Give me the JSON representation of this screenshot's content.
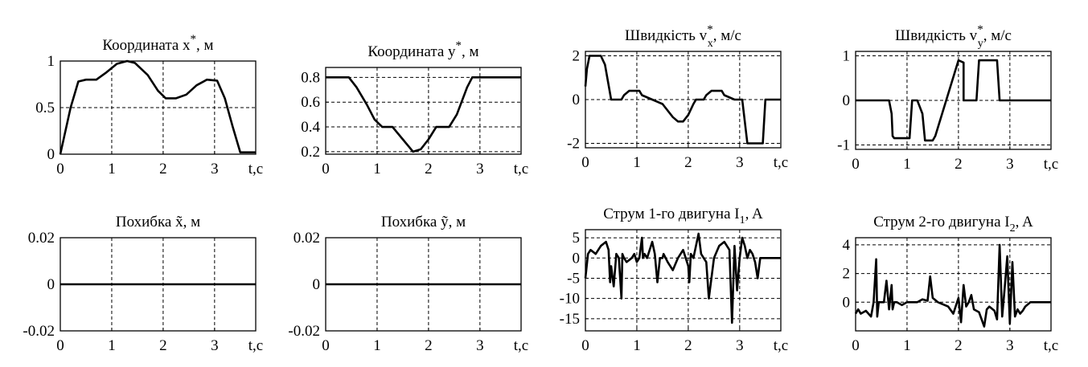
{
  "colors": {
    "line": "#000000",
    "grid": "#000000",
    "background": "#ffffff"
  },
  "chart_data": [
    {
      "type": "line",
      "title": {
        "main": "Координата x",
        "sup": "*",
        "tail": ", м"
      },
      "xlim": [
        0,
        3.8
      ],
      "ylim": [
        0,
        1.0
      ],
      "xticks": [
        0,
        1,
        2,
        3
      ],
      "xtick_labels": [
        "0",
        "1",
        "2",
        "3"
      ],
      "xunit": "t,c",
      "yticks": [
        0,
        0.5,
        1
      ],
      "ytick_labels": [
        "0",
        "0.5",
        "1"
      ],
      "grid": true,
      "series": [
        {
          "x": [
            0,
            0.2,
            0.35,
            0.5,
            0.7,
            0.9,
            1.1,
            1.3,
            1.45,
            1.7,
            1.9,
            2.05,
            2.25,
            2.45,
            2.65,
            2.85,
            3.05,
            3.2,
            3.35,
            3.5,
            3.8
          ],
          "y": [
            0,
            0.5,
            0.78,
            0.8,
            0.8,
            0.88,
            0.97,
            1.0,
            0.98,
            0.85,
            0.68,
            0.6,
            0.6,
            0.64,
            0.74,
            0.8,
            0.79,
            0.6,
            0.3,
            0.02,
            0.02
          ]
        }
      ]
    },
    {
      "type": "line",
      "title": {
        "main": "Координата y",
        "sup": "*",
        "tail": ", м"
      },
      "xlim": [
        0,
        3.8
      ],
      "ylim": [
        0.18,
        0.88
      ],
      "xticks": [
        0,
        1,
        2,
        3
      ],
      "xtick_labels": [
        "0",
        "1",
        "2",
        "3"
      ],
      "xunit": "t,c",
      "yticks": [
        0.2,
        0.4,
        0.6,
        0.8
      ],
      "ytick_labels": [
        "0.2",
        "0.4",
        "0.6",
        "0.8"
      ],
      "grid": true,
      "series": [
        {
          "x": [
            0,
            0.45,
            0.6,
            0.8,
            0.95,
            1.1,
            1.3,
            1.5,
            1.7,
            1.85,
            2.0,
            2.15,
            2.4,
            2.55,
            2.75,
            2.85,
            3.8
          ],
          "y": [
            0.8,
            0.8,
            0.72,
            0.58,
            0.46,
            0.4,
            0.4,
            0.3,
            0.2,
            0.22,
            0.3,
            0.4,
            0.4,
            0.5,
            0.72,
            0.8,
            0.8
          ]
        }
      ]
    },
    {
      "type": "line",
      "title": {
        "main": "Швидкість v",
        "sup": "*",
        "sub": "x",
        "tail": ", м/с"
      },
      "xlim": [
        0,
        3.8
      ],
      "ylim": [
        -2.2,
        2.2
      ],
      "xticks": [
        0,
        1,
        2,
        3
      ],
      "xtick_labels": [
        "0",
        "1",
        "2",
        "3"
      ],
      "xunit": "t,c",
      "yticks": [
        -2,
        0,
        2
      ],
      "ytick_labels": [
        "-2",
        "0",
        "2"
      ],
      "grid": true,
      "series": [
        {
          "x": [
            0,
            0.03,
            0.08,
            0.3,
            0.38,
            0.47,
            0.5,
            0.7,
            0.75,
            0.85,
            1.05,
            1.1,
            1.3,
            1.5,
            1.7,
            1.8,
            1.9,
            2.0,
            2.1,
            2.15,
            2.3,
            2.35,
            2.45,
            2.65,
            2.7,
            2.9,
            3.05,
            3.15,
            3.45,
            3.5,
            3.8
          ],
          "y": [
            0.6,
            1.4,
            2.0,
            2.0,
            1.6,
            0.4,
            0,
            0,
            0.2,
            0.4,
            0.4,
            0.2,
            0,
            -0.2,
            -0.8,
            -1.0,
            -1.0,
            -0.7,
            -0.2,
            0,
            0,
            0.2,
            0.4,
            0.4,
            0.2,
            0,
            0,
            -2.0,
            -2.0,
            0,
            0
          ]
        }
      ]
    },
    {
      "type": "line",
      "title": {
        "main": "Швидкість v",
        "sup": "*",
        "sub": "y",
        "tail": ", м/с"
      },
      "xlim": [
        0,
        3.8
      ],
      "ylim": [
        -1.1,
        1.1
      ],
      "xticks": [
        0,
        1,
        2,
        3
      ],
      "xtick_labels": [
        "0",
        "1",
        "2",
        "3"
      ],
      "xunit": "t,c",
      "yticks": [
        -1,
        0,
        1
      ],
      "ytick_labels": [
        "-1",
        "0",
        "1"
      ],
      "grid": true,
      "series": [
        {
          "x": [
            0,
            0.65,
            0.7,
            0.72,
            0.75,
            1.05,
            1.1,
            1.2,
            1.3,
            1.35,
            1.5,
            1.55,
            2.0,
            2.1,
            2.1,
            2.35,
            2.4,
            2.75,
            2.8,
            3.8
          ],
          "y": [
            0,
            0,
            -0.3,
            -0.8,
            -0.85,
            -0.85,
            0,
            0,
            -0.3,
            -0.9,
            -0.9,
            -0.8,
            0.9,
            0.85,
            0,
            0,
            0.9,
            0.9,
            0,
            0
          ]
        }
      ]
    },
    {
      "type": "line",
      "title": {
        "main": "Похибка x̃, м"
      },
      "xlim": [
        0,
        3.8
      ],
      "ylim": [
        -0.02,
        0.02
      ],
      "xticks": [
        0,
        1,
        2,
        3
      ],
      "xtick_labels": [
        "0",
        "1",
        "2",
        "3"
      ],
      "xunit": "t,c",
      "yticks": [
        -0.02,
        0,
        0.02
      ],
      "ytick_labels": [
        "-0.02",
        "0",
        "0.02"
      ],
      "grid": true,
      "series": [
        {
          "x": [
            0,
            3.8
          ],
          "y": [
            0,
            0
          ]
        }
      ]
    },
    {
      "type": "line",
      "title": {
        "main": "Похибка ỹ, м"
      },
      "xlim": [
        0,
        3.8
      ],
      "ylim": [
        -0.02,
        0.02
      ],
      "xticks": [
        0,
        1,
        2,
        3
      ],
      "xtick_labels": [
        "0",
        "1",
        "2",
        "3"
      ],
      "xunit": "t,c",
      "yticks": [
        -0.02,
        0,
        0.02
      ],
      "ytick_labels": [
        "-0.02",
        "0",
        "0.02"
      ],
      "grid": true,
      "series": [
        {
          "x": [
            0,
            3.8
          ],
          "y": [
            0,
            0
          ]
        }
      ]
    },
    {
      "type": "line",
      "title": {
        "main": "Струм 1-го двигуна I",
        "sub": "1",
        "tail": ", A"
      },
      "xlim": [
        0,
        3.8
      ],
      "ylim": [
        -18,
        7
      ],
      "xticks": [
        0,
        1,
        2,
        3
      ],
      "xtick_labels": [
        "0",
        "1",
        "2",
        "3"
      ],
      "xunit": "t,c",
      "yticks": [
        -15,
        -10,
        -5,
        0,
        5
      ],
      "ytick_labels": [
        "-15",
        "-10",
        "-5",
        "0",
        "5"
      ],
      "grid": true,
      "series": [
        {
          "x": [
            0,
            0.05,
            0.1,
            0.2,
            0.3,
            0.4,
            0.45,
            0.48,
            0.5,
            0.55,
            0.6,
            0.65,
            0.7,
            0.72,
            0.75,
            0.8,
            0.9,
            0.95,
            1.0,
            1.05,
            1.1,
            1.12,
            1.15,
            1.2,
            1.3,
            1.35,
            1.4,
            1.45,
            1.5,
            1.52,
            1.6,
            1.7,
            1.8,
            1.9,
            2.0,
            2.02,
            2.05,
            2.1,
            2.2,
            2.25,
            2.3,
            2.35,
            2.4,
            2.5,
            2.6,
            2.7,
            2.8,
            2.85,
            2.9,
            2.95,
            3.0,
            3.05,
            3.1,
            3.15,
            3.2,
            3.25,
            3.3,
            3.35,
            3.4,
            3.5,
            3.6,
            3.8
          ],
          "y": [
            -5,
            1,
            2,
            1,
            3,
            4,
            2,
            -6,
            -2,
            -7,
            1,
            0,
            -10,
            1,
            0,
            -1,
            0,
            1,
            -1,
            0,
            5,
            0,
            1,
            0,
            4,
            1,
            -6,
            0,
            0,
            1,
            -1,
            -3,
            0,
            2,
            -2,
            -6,
            1,
            0,
            6,
            1,
            0,
            -1,
            -10,
            0,
            3,
            4,
            2,
            -16,
            3,
            -8,
            0,
            5,
            3,
            0,
            2,
            1,
            -1,
            -5,
            0,
            0,
            0,
            0
          ]
        }
      ]
    },
    {
      "type": "line",
      "title": {
        "main": "Струм 2-го двигуна I",
        "sub": "2",
        "tail": ", A"
      },
      "xlim": [
        0,
        3.8
      ],
      "ylim": [
        -2,
        4.5
      ],
      "xticks": [
        0,
        1,
        2,
        3
      ],
      "xtick_labels": [
        "0",
        "1",
        "2",
        "3"
      ],
      "xunit": "t,c",
      "yticks": [
        0,
        2,
        4
      ],
      "ytick_labels": [
        "0",
        "2",
        "4"
      ],
      "grid": true,
      "series": [
        {
          "x": [
            0,
            0.05,
            0.1,
            0.2,
            0.3,
            0.35,
            0.4,
            0.42,
            0.45,
            0.5,
            0.55,
            0.6,
            0.65,
            0.7,
            0.72,
            0.75,
            0.8,
            0.9,
            1.0,
            1.2,
            1.3,
            1.4,
            1.45,
            1.5,
            1.6,
            1.8,
            1.9,
            2.0,
            2.05,
            2.1,
            2.15,
            2.2,
            2.25,
            2.3,
            2.4,
            2.5,
            2.55,
            2.6,
            2.7,
            2.75,
            2.8,
            2.85,
            2.9,
            2.95,
            3.0,
            3.05,
            3.1,
            3.15,
            3.2,
            3.25,
            3.3,
            3.4,
            3.5,
            3.8
          ],
          "y": [
            -0.8,
            -0.5,
            -0.8,
            -0.6,
            -1.0,
            0,
            3,
            -1,
            0,
            0,
            0,
            1.5,
            -0.5,
            1.2,
            -0.5,
            0,
            0,
            -0.2,
            0,
            0,
            0.2,
            0.1,
            1.8,
            0.3,
            0,
            -0.3,
            -0.8,
            0.3,
            -1.4,
            1.2,
            -0.3,
            0,
            0.5,
            -0.5,
            -0.7,
            -1.7,
            -0.5,
            -0.3,
            -0.6,
            -1.2,
            4.0,
            -1.0,
            1.0,
            3.2,
            -1.5,
            2.8,
            -1.0,
            -0.5,
            -0.8,
            -0.6,
            -0.3,
            0,
            0,
            0
          ]
        }
      ]
    }
  ]
}
